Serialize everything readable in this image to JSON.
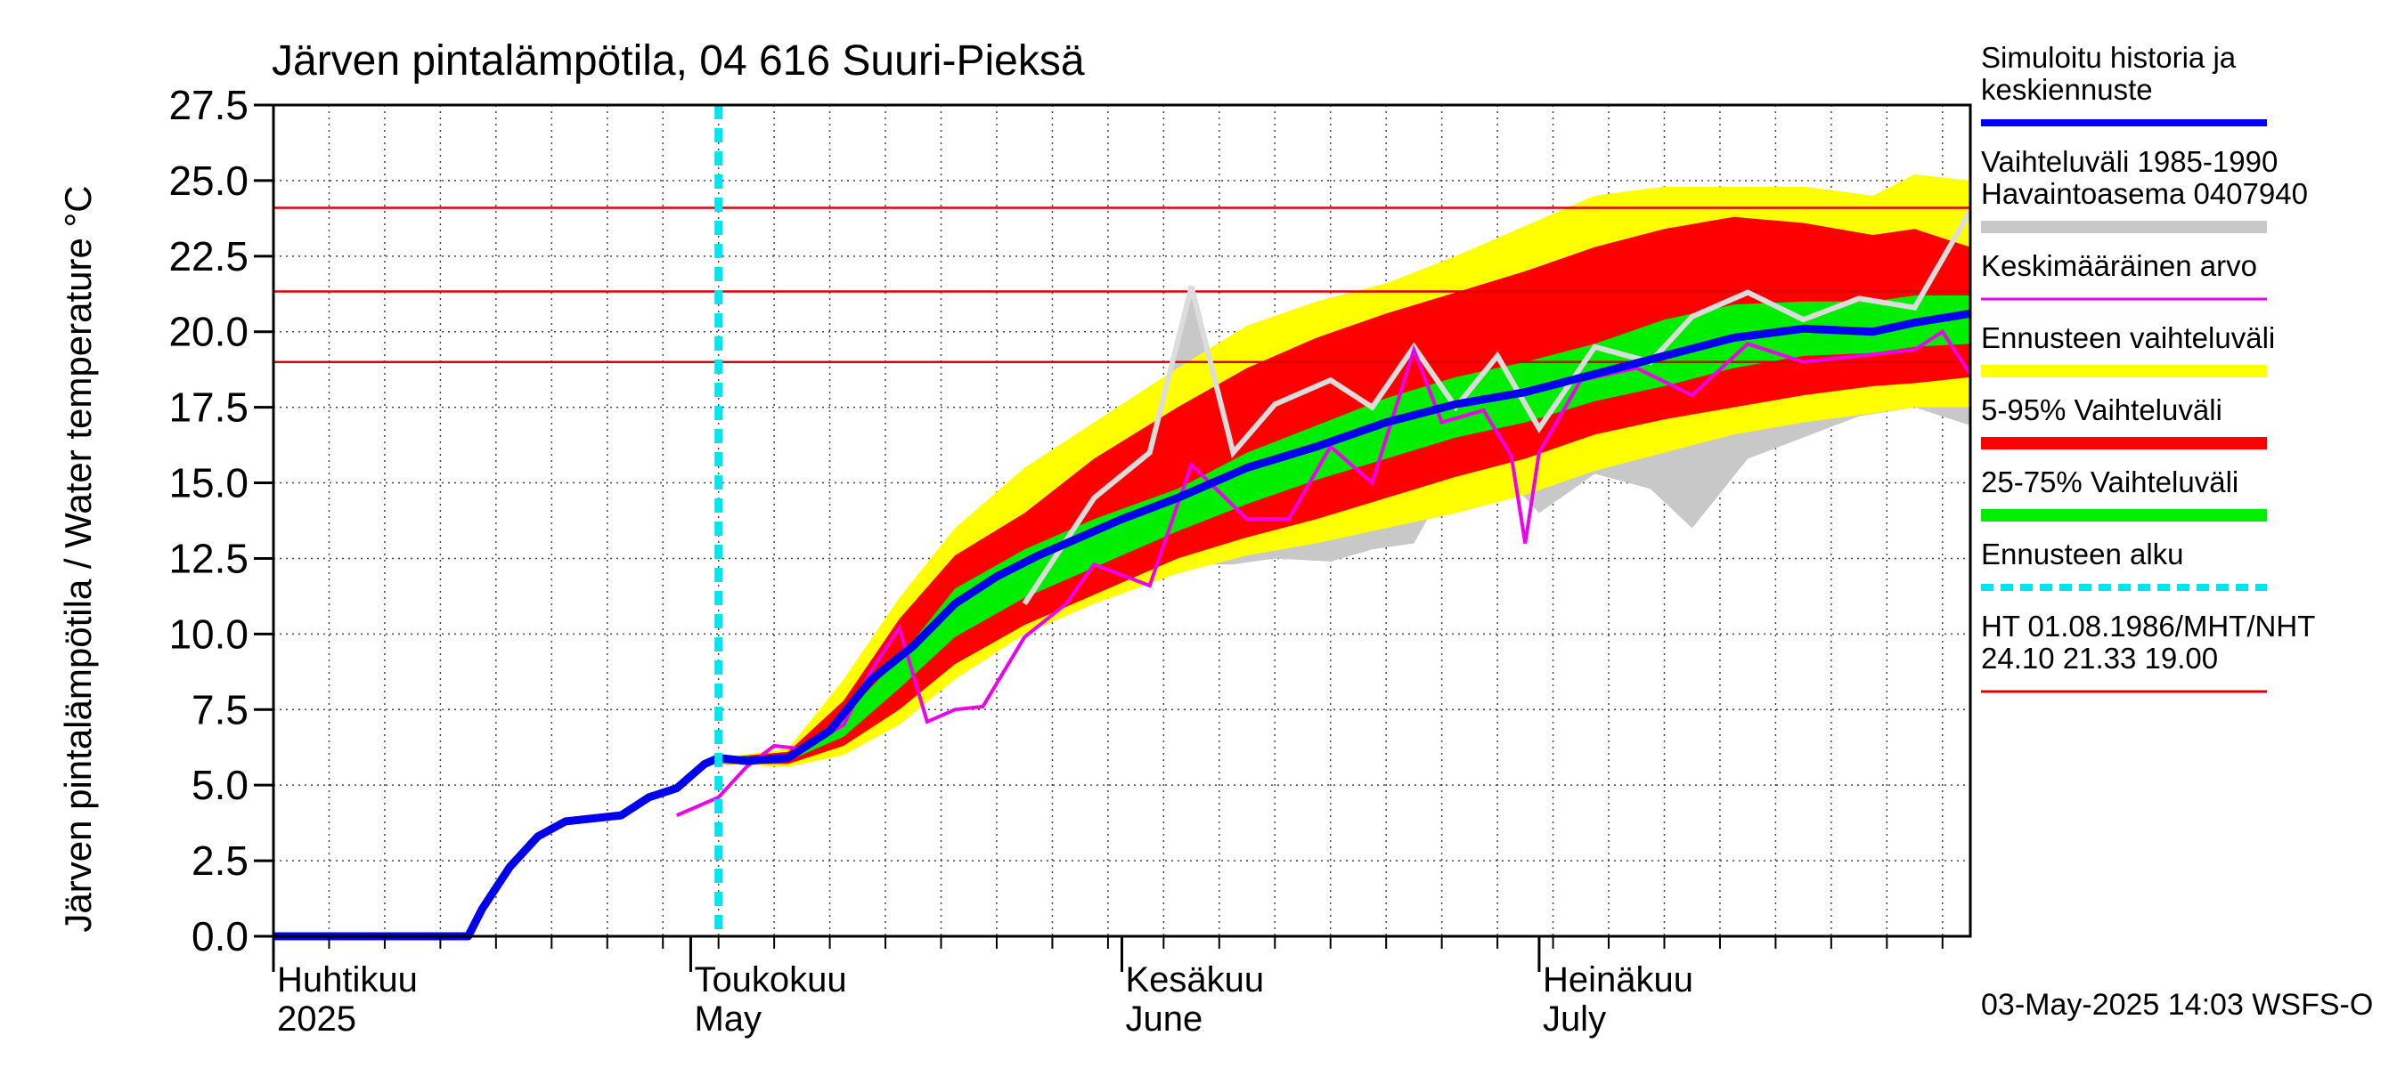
{
  "chart_data": {
    "type": "line",
    "title": "Järven pintalämpötila, 04 616 Suuri-Pieksä",
    "ylabel": "Järven pintalämpötila / Water temperature °C",
    "ylim": [
      0,
      27.5
    ],
    "y_ticks": [
      "0.0",
      "2.5",
      "5.0",
      "7.5",
      "10.0",
      "12.5",
      "15.0",
      "17.5",
      "20.0",
      "22.5",
      "25.0",
      "27.5"
    ],
    "x_range": [
      "2025-04-01",
      "2025-08-01"
    ],
    "month_labels": [
      {
        "fi": "Huhtikuu",
        "en": "2025",
        "date": "2025-04-01"
      },
      {
        "fi": "Toukokuu",
        "en": "May",
        "date": "2025-05-01"
      },
      {
        "fi": "Kesäkuu",
        "en": "June",
        "date": "2025-06-01"
      },
      {
        "fi": "Heinäkuu",
        "en": "July",
        "date": "2025-07-01"
      }
    ],
    "forecast_start": "2025-05-03",
    "hlines": [
      24.1,
      21.33,
      19.0
    ],
    "colors": {
      "sim": "#0000ee",
      "hist_range": "#c8c8c8",
      "mean": "#ee00ee",
      "forecast_range": "#ffff00",
      "p5_95": "#ff0000",
      "p25_75": "#00ee00",
      "forecast_start": "#00e5ee",
      "ht": "#dd0000",
      "hist_line": "#dcdcdc"
    },
    "legend": [
      {
        "label": "Simuloitu historia ja keskiennuste",
        "color": "#0000ee",
        "style": "line"
      },
      {
        "label": "Vaihteluväli 1985-1990 Havaintoasema 0407940",
        "color": "#c8c8c8",
        "style": "band"
      },
      {
        "label": "Keskimääräinen arvo",
        "color": "#ee00ee",
        "style": "thin"
      },
      {
        "label": "Ennusteen vaihteluväli",
        "color": "#ffff00",
        "style": "band"
      },
      {
        "label": "5-95% Vaihteluväli",
        "color": "#ff0000",
        "style": "band"
      },
      {
        "label": "25-75% Vaihteluväli",
        "color": "#00ee00",
        "style": "band"
      },
      {
        "label": "Ennusteen alku",
        "color": "#00e5ee",
        "style": "dashed"
      },
      {
        "label": "HT 01.08.1986/MHT/NHT 24.10 21.33 19.00",
        "color": "#dd0000",
        "style": "thin"
      }
    ],
    "footer": "03-May-2025 14:03 WSFS-O",
    "series": [
      {
        "name": "Simuloitu historia ja keskiennuste",
        "x": [
          "2025-04-01",
          "2025-04-08",
          "2025-04-15",
          "2025-04-16",
          "2025-04-18",
          "2025-04-20",
          "2025-04-22",
          "2025-04-24",
          "2025-04-26",
          "2025-04-28",
          "2025-04-30",
          "2025-05-01",
          "2025-05-02",
          "2025-05-03",
          "2025-05-05",
          "2025-05-08",
          "2025-05-11",
          "2025-05-14",
          "2025-05-17",
          "2025-05-20",
          "2025-05-23",
          "2025-05-26",
          "2025-05-29",
          "2025-06-01",
          "2025-06-05",
          "2025-06-10",
          "2025-06-15",
          "2025-06-20",
          "2025-06-25",
          "2025-06-30",
          "2025-07-05",
          "2025-07-10",
          "2025-07-15",
          "2025-07-20",
          "2025-07-25",
          "2025-07-28",
          "2025-08-01"
        ],
        "y": [
          0.0,
          0.0,
          0.0,
          0.9,
          2.3,
          3.3,
          3.8,
          3.9,
          4.0,
          4.6,
          4.9,
          5.3,
          5.7,
          5.9,
          5.8,
          5.9,
          6.8,
          8.5,
          9.6,
          11.0,
          11.9,
          12.6,
          13.2,
          13.8,
          14.5,
          15.5,
          16.2,
          17.0,
          17.6,
          18.0,
          18.6,
          19.2,
          19.8,
          20.1,
          20.0,
          20.3,
          20.6
        ]
      },
      {
        "name": "Keskimääräinen arvo",
        "x": [
          "2025-04-30",
          "2025-05-01",
          "2025-05-02",
          "2025-05-03",
          "2025-05-05",
          "2025-05-07",
          "2025-05-09",
          "2025-05-12",
          "2025-05-14",
          "2025-05-16",
          "2025-05-18",
          "2025-05-20",
          "2025-05-22",
          "2025-05-25",
          "2025-05-28",
          "2025-05-30",
          "2025-06-03",
          "2025-06-06",
          "2025-06-10",
          "2025-06-13",
          "2025-06-16",
          "2025-06-19",
          "2025-06-22",
          "2025-06-24",
          "2025-06-27",
          "2025-06-29",
          "2025-06-30",
          "2025-07-01",
          "2025-07-04",
          "2025-07-08",
          "2025-07-12",
          "2025-07-16",
          "2025-07-20",
          "2025-07-24",
          "2025-07-28",
          "2025-07-30",
          "2025-08-01"
        ],
        "y": [
          4.0,
          4.2,
          4.4,
          4.6,
          5.6,
          6.3,
          6.2,
          7.0,
          8.8,
          10.2,
          7.1,
          7.5,
          7.6,
          9.9,
          11.0,
          12.3,
          11.6,
          15.6,
          13.8,
          13.8,
          16.2,
          15.0,
          19.4,
          17.0,
          17.4,
          15.9,
          13.0,
          16.0,
          18.4,
          18.8,
          17.9,
          19.6,
          19.0,
          19.2,
          19.4,
          20.0,
          18.6
        ]
      },
      {
        "name": "Vaihteluväli 1985-1990 Havaintoasema 0407940",
        "x": [
          "2025-05-25",
          "2025-05-30",
          "2025-06-03",
          "2025-06-06",
          "2025-06-09",
          "2025-06-12",
          "2025-06-16",
          "2025-06-19",
          "2025-06-22",
          "2025-06-25",
          "2025-06-28",
          "2025-07-01",
          "2025-07-05",
          "2025-07-09",
          "2025-07-12",
          "2025-07-16",
          "2025-07-20",
          "2025-07-24",
          "2025-07-28",
          "2025-08-01"
        ],
        "y": [
          11.0,
          14.5,
          16.0,
          21.5,
          16.0,
          17.6,
          18.4,
          17.5,
          19.5,
          17.5,
          19.2,
          16.8,
          19.5,
          19.0,
          20.5,
          21.3,
          20.4,
          21.1,
          20.8,
          24.0
        ]
      }
    ],
    "bands": [
      {
        "name": "Vaihteluväli 1985-1990 Havaintoasema 0407940",
        "x": [
          "2025-05-25",
          "2025-05-30",
          "2025-06-03",
          "2025-06-06",
          "2025-06-09",
          "2025-06-12",
          "2025-06-16",
          "2025-06-19",
          "2025-06-22",
          "2025-06-25",
          "2025-06-28",
          "2025-07-01",
          "2025-07-05",
          "2025-07-09",
          "2025-07-12",
          "2025-07-16",
          "2025-07-20",
          "2025-07-24",
          "2025-07-28",
          "2025-08-01"
        ],
        "low": [
          11.0,
          11.5,
          11.8,
          12.3,
          12.3,
          12.5,
          12.4,
          12.8,
          13.0,
          15.5,
          15.5,
          14.0,
          15.3,
          14.8,
          13.5,
          15.8,
          16.5,
          17.2,
          17.5,
          16.9
        ],
        "high": [
          11.0,
          14.5,
          16.0,
          21.5,
          16.0,
          17.6,
          18.4,
          17.5,
          19.5,
          17.5,
          19.2,
          16.8,
          19.5,
          19.0,
          20.5,
          21.3,
          20.4,
          21.1,
          20.8,
          24.0
        ]
      },
      {
        "name": "Ennusteen vaihteluväli",
        "x": [
          "2025-05-03",
          "2025-05-08",
          "2025-05-12",
          "2025-05-16",
          "2025-05-20",
          "2025-05-25",
          "2025-05-30",
          "2025-06-05",
          "2025-06-10",
          "2025-06-15",
          "2025-06-20",
          "2025-06-25",
          "2025-06-30",
          "2025-07-05",
          "2025-07-10",
          "2025-07-15",
          "2025-07-20",
          "2025-07-25",
          "2025-07-28",
          "2025-08-01"
        ],
        "low": [
          5.7,
          5.6,
          6.0,
          7.0,
          8.5,
          10.0,
          11.0,
          12.0,
          12.6,
          13.0,
          13.5,
          14.0,
          14.6,
          15.4,
          16.0,
          16.6,
          17.0,
          17.3,
          17.5,
          17.5
        ],
        "high": [
          5.9,
          6.2,
          8.5,
          11.2,
          13.5,
          15.5,
          17.0,
          18.8,
          20.2,
          21.0,
          21.6,
          22.5,
          23.5,
          24.5,
          24.8,
          24.8,
          24.8,
          24.5,
          25.2,
          25.0
        ]
      },
      {
        "name": "5-95% Vaihteluväli",
        "x": [
          "2025-05-03",
          "2025-05-08",
          "2025-05-12",
          "2025-05-16",
          "2025-05-20",
          "2025-05-25",
          "2025-05-30",
          "2025-06-05",
          "2025-06-10",
          "2025-06-15",
          "2025-06-20",
          "2025-06-25",
          "2025-06-30",
          "2025-07-05",
          "2025-07-10",
          "2025-07-15",
          "2025-07-20",
          "2025-07-25",
          "2025-07-28",
          "2025-08-01"
        ],
        "low": [
          5.7,
          5.7,
          6.3,
          7.5,
          9.0,
          10.3,
          11.3,
          12.5,
          13.2,
          13.8,
          14.5,
          15.2,
          15.8,
          16.6,
          17.1,
          17.5,
          17.9,
          18.2,
          18.3,
          18.5
        ],
        "high": [
          5.9,
          6.1,
          7.8,
          10.5,
          12.6,
          14.0,
          15.8,
          17.5,
          18.8,
          19.8,
          20.6,
          21.3,
          22.0,
          22.8,
          23.4,
          23.8,
          23.6,
          23.2,
          23.4,
          22.8
        ]
      },
      {
        "name": "25-75% Vaihteluväli",
        "x": [
          "2025-05-03",
          "2025-05-08",
          "2025-05-12",
          "2025-05-16",
          "2025-05-20",
          "2025-05-25",
          "2025-05-30",
          "2025-06-05",
          "2025-06-10",
          "2025-06-15",
          "2025-06-20",
          "2025-06-25",
          "2025-06-30",
          "2025-07-05",
          "2025-07-10",
          "2025-07-15",
          "2025-07-20",
          "2025-07-25",
          "2025-07-28",
          "2025-08-01"
        ],
        "low": [
          5.7,
          5.8,
          6.6,
          8.2,
          9.9,
          11.2,
          12.2,
          13.4,
          14.3,
          15.1,
          15.8,
          16.5,
          17.0,
          17.7,
          18.2,
          18.8,
          19.2,
          19.3,
          19.5,
          19.6
        ],
        "high": [
          5.9,
          6.0,
          7.3,
          9.2,
          11.5,
          12.8,
          13.8,
          14.8,
          16.0,
          16.9,
          17.8,
          18.5,
          19.0,
          19.6,
          20.4,
          20.9,
          21.0,
          21.0,
          21.2,
          21.2
        ]
      }
    ]
  }
}
